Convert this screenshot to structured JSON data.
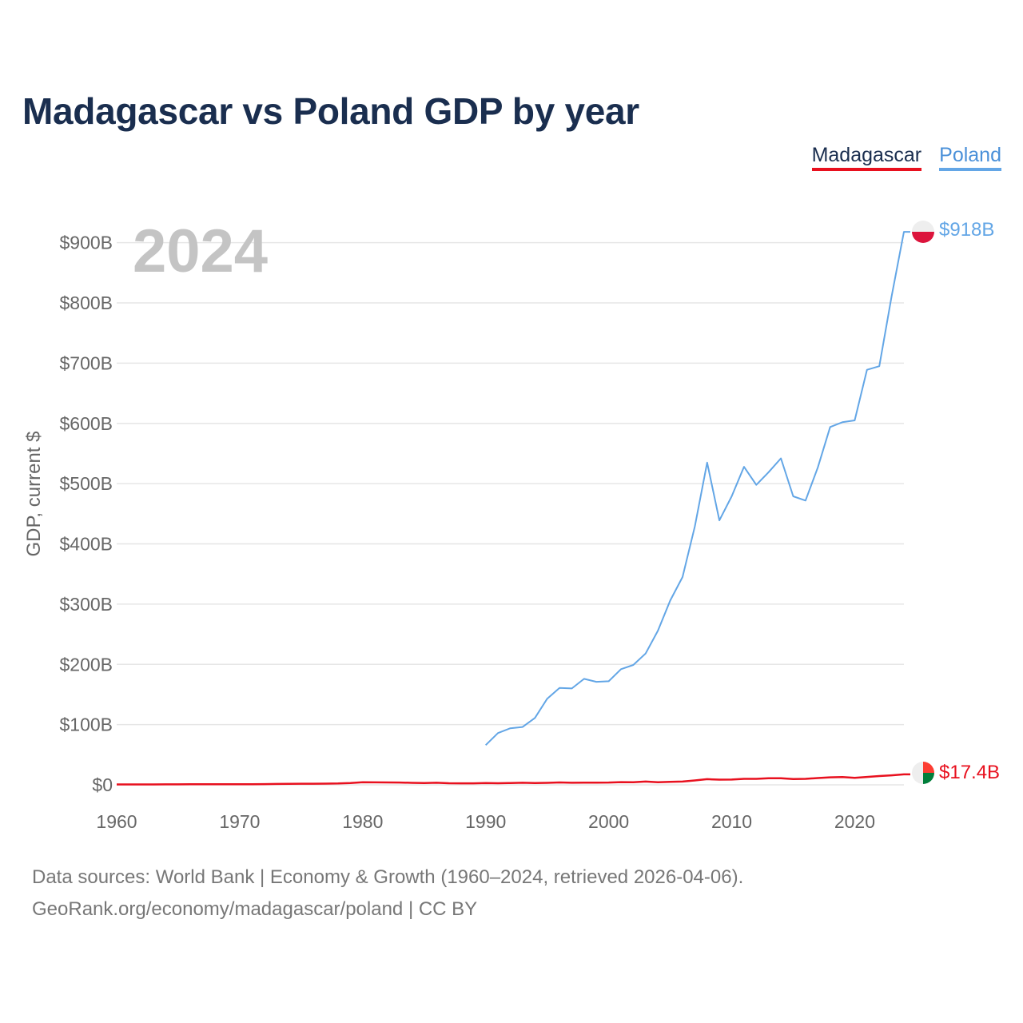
{
  "title": "Madagascar vs Poland GDP by year",
  "legend": [
    {
      "label": "Madagascar",
      "color": "#e8101e"
    },
    {
      "label": "Poland",
      "color": "#63a6e6"
    }
  ],
  "year_label": "2024",
  "footer": {
    "line1": "Data sources: World Bank | Economy & Growth (1960–2024, retrieved 2026-04-06).",
    "line2": "GeoRank.org/economy/madagascar/poland | CC BY"
  },
  "chart_data": {
    "type": "line",
    "title": "Madagascar vs Poland GDP by year",
    "xlabel": "",
    "ylabel": "GDP, current $",
    "xlim": [
      1960,
      2024
    ],
    "ylim": [
      0,
      950
    ],
    "y_unit": "billions USD",
    "grid": true,
    "x_ticks": [
      1960,
      1970,
      1980,
      1990,
      2000,
      2010,
      2020
    ],
    "x_tick_labels": [
      "1960",
      "1970",
      "1980",
      "1990",
      "2000",
      "2010",
      "2020"
    ],
    "y_ticks": [
      0,
      100,
      200,
      300,
      400,
      500,
      600,
      700,
      800,
      900
    ],
    "y_tick_labels": [
      "$0",
      "$100B",
      "$200B",
      "$300B",
      "$400B",
      "$500B",
      "$600B",
      "$700B",
      "$800B",
      "$900B"
    ],
    "series": [
      {
        "name": "Madagascar",
        "color": "#e8101e",
        "end_label": "$17.4B",
        "points": [
          [
            1960,
            0.7
          ],
          [
            1961,
            0.7
          ],
          [
            1962,
            0.7
          ],
          [
            1963,
            0.7
          ],
          [
            1964,
            0.8
          ],
          [
            1965,
            0.8
          ],
          [
            1966,
            0.9
          ],
          [
            1967,
            0.9
          ],
          [
            1968,
            1.0
          ],
          [
            1969,
            1.0
          ],
          [
            1970,
            1.1
          ],
          [
            1971,
            1.1
          ],
          [
            1972,
            1.2
          ],
          [
            1973,
            1.4
          ],
          [
            1974,
            1.6
          ],
          [
            1975,
            1.8
          ],
          [
            1976,
            1.9
          ],
          [
            1977,
            2.0
          ],
          [
            1978,
            2.3
          ],
          [
            1979,
            3.1
          ],
          [
            1980,
            4.4
          ],
          [
            1981,
            4.1
          ],
          [
            1982,
            4.0
          ],
          [
            1983,
            3.9
          ],
          [
            1984,
            3.3
          ],
          [
            1985,
            3.0
          ],
          [
            1986,
            3.5
          ],
          [
            1987,
            2.6
          ],
          [
            1988,
            2.5
          ],
          [
            1989,
            2.5
          ],
          [
            1990,
            3.1
          ],
          [
            1991,
            2.7
          ],
          [
            1992,
            3.0
          ],
          [
            1993,
            3.4
          ],
          [
            1994,
            3.0
          ],
          [
            1995,
            3.3
          ],
          [
            1996,
            4.0
          ],
          [
            1997,
            3.5
          ],
          [
            1998,
            3.7
          ],
          [
            1999,
            3.7
          ],
          [
            2000,
            3.9
          ],
          [
            2001,
            4.5
          ],
          [
            2002,
            4.4
          ],
          [
            2003,
            5.5
          ],
          [
            2004,
            4.4
          ],
          [
            2005,
            5.0
          ],
          [
            2006,
            5.5
          ],
          [
            2007,
            7.3
          ],
          [
            2008,
            9.4
          ],
          [
            2009,
            8.6
          ],
          [
            2010,
            8.7
          ],
          [
            2011,
            10.0
          ],
          [
            2012,
            10.0
          ],
          [
            2013,
            10.9
          ],
          [
            2014,
            11.0
          ],
          [
            2015,
            9.7
          ],
          [
            2016,
            10.0
          ],
          [
            2017,
            11.3
          ],
          [
            2018,
            12.5
          ],
          [
            2019,
            13.0
          ],
          [
            2020,
            11.7
          ],
          [
            2021,
            13.1
          ],
          [
            2022,
            14.6
          ],
          [
            2023,
            15.8
          ],
          [
            2024,
            17.4
          ]
        ]
      },
      {
        "name": "Poland",
        "color": "#63a6e6",
        "end_label": "$918B",
        "points": [
          [
            1990,
            66
          ],
          [
            1991,
            86
          ],
          [
            1992,
            94
          ],
          [
            1993,
            96
          ],
          [
            1994,
            111
          ],
          [
            1995,
            143
          ],
          [
            1996,
            161
          ],
          [
            1997,
            160
          ],
          [
            1998,
            176
          ],
          [
            1999,
            171
          ],
          [
            2000,
            172
          ],
          [
            2001,
            192
          ],
          [
            2002,
            199
          ],
          [
            2003,
            218
          ],
          [
            2004,
            256
          ],
          [
            2005,
            306
          ],
          [
            2006,
            345
          ],
          [
            2007,
            429
          ],
          [
            2008,
            535
          ],
          [
            2009,
            439
          ],
          [
            2010,
            479
          ],
          [
            2011,
            528
          ],
          [
            2012,
            498
          ],
          [
            2013,
            519
          ],
          [
            2014,
            542
          ],
          [
            2015,
            479
          ],
          [
            2016,
            472
          ],
          [
            2017,
            527
          ],
          [
            2018,
            594
          ],
          [
            2019,
            602
          ],
          [
            2020,
            605
          ],
          [
            2021,
            689
          ],
          [
            2022,
            695
          ],
          [
            2023,
            811
          ],
          [
            2024,
            918
          ]
        ]
      }
    ]
  }
}
